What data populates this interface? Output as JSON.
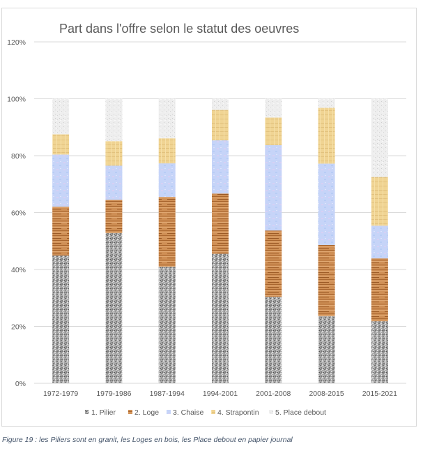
{
  "caption": "Figure 19 : les Piliers sont en granit, les Loges en bois, les Place debout en papier journal",
  "chart_data": {
    "type": "bar",
    "stacked": true,
    "title": "Part dans l'offre selon le statut des oeuvres",
    "xlabel": "",
    "ylabel": "",
    "ylim": [
      0,
      1.2
    ],
    "yticks": [
      0,
      0.2,
      0.4,
      0.6,
      0.8,
      1.0,
      1.2
    ],
    "ytick_labels": [
      "0%",
      "20%",
      "40%",
      "60%",
      "80%",
      "100%",
      "120%"
    ],
    "grid": true,
    "legend_position": "bottom",
    "categories": [
      "1972-1979",
      "1979-1986",
      "1987-1994",
      "1994-2001",
      "2001-2008",
      "2008-2015",
      "2015-2021"
    ],
    "series": [
      {
        "name": "1. Pilier",
        "texture": "granite",
        "color": "#9e9e9e",
        "values": [
          0.449,
          0.528,
          0.41,
          0.455,
          0.304,
          0.236,
          0.218
        ]
      },
      {
        "name": "2. Loge",
        "texture": "wood",
        "color": "#c8864a",
        "values": [
          0.172,
          0.117,
          0.245,
          0.212,
          0.233,
          0.25,
          0.221
        ]
      },
      {
        "name": "3. Chaise",
        "texture": "blue-marble",
        "color": "#c3d3f7",
        "values": [
          0.183,
          0.12,
          0.118,
          0.187,
          0.3,
          0.286,
          0.115
        ]
      },
      {
        "name": "4. Strapontin",
        "texture": "straw",
        "color": "#efd393",
        "values": [
          0.071,
          0.086,
          0.088,
          0.107,
          0.097,
          0.196,
          0.171
        ]
      },
      {
        "name": "5. Place debout",
        "texture": "newsprint",
        "color": "#eeeeee",
        "values": [
          0.125,
          0.149,
          0.139,
          0.039,
          0.066,
          0.032,
          0.275
        ]
      }
    ]
  }
}
